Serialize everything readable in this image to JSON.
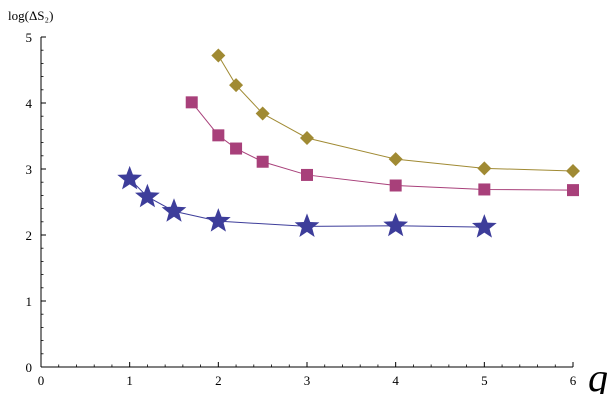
{
  "chart_data": {
    "type": "line",
    "ylabel": "log(ΔS₂)",
    "xlabel": "q",
    "xlim": [
      0,
      6
    ],
    "ylim": [
      0,
      5
    ],
    "xticks": [
      "0",
      "1",
      "2",
      "3",
      "4",
      "5",
      "6"
    ],
    "yticks": [
      "0",
      "1",
      "2",
      "3",
      "4",
      "5"
    ],
    "grid": false,
    "series": [
      {
        "marker": "diamond",
        "color": "#a08a33",
        "x": [
          2.0,
          2.2,
          2.5,
          3.0,
          4.0,
          5.0,
          6.0
        ],
        "y": [
          4.72,
          4.27,
          3.84,
          3.47,
          3.15,
          3.01,
          2.97
        ]
      },
      {
        "marker": "square",
        "color": "#a8407a",
        "x": [
          1.7,
          2.0,
          2.2,
          2.5,
          3.0,
          4.0,
          5.0,
          6.0
        ],
        "y": [
          4.01,
          3.51,
          3.31,
          3.11,
          2.91,
          2.75,
          2.69,
          2.68
        ]
      },
      {
        "marker": "star",
        "color": "#3d3d9a",
        "x": [
          1.0,
          1.2,
          1.5,
          2.0,
          3.0,
          4.0,
          5.0
        ],
        "y": [
          2.85,
          2.58,
          2.36,
          2.21,
          2.13,
          2.14,
          2.12
        ]
      }
    ]
  }
}
